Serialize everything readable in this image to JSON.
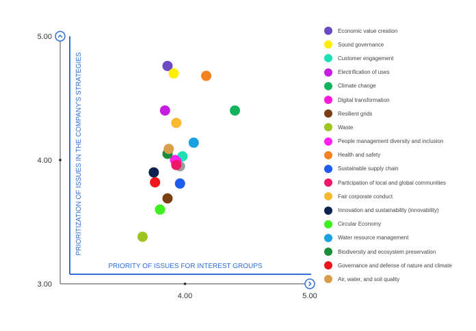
{
  "chart_data": {
    "type": "scatter",
    "xlabel": "PRIORITY OF ISSUES FOR INTEREST GROUPS",
    "ylabel": "PRIORITIZATION OF ISSUES IN THE COMPANY'S STRATEGIES",
    "xlim": [
      3.0,
      5.0
    ],
    "ylim": [
      3.0,
      5.0
    ],
    "x_ticks": [
      "4.00",
      "5.00"
    ],
    "y_ticks": [
      "3.00",
      "4.00",
      "5.00"
    ],
    "origin_label": "3.00",
    "legend_position": "right",
    "series": [
      {
        "name": "Economic value creation",
        "color": "#6a4bc4",
        "x": 3.86,
        "y": 4.76
      },
      {
        "name": "Sound governance",
        "color": "#ffee00",
        "x": 3.91,
        "y": 4.7
      },
      {
        "name": "Customer engagement",
        "color": "#1de0b4",
        "x": 3.98,
        "y": 4.03
      },
      {
        "name": "Electrification of uses",
        "color": "#c51ee0",
        "x": 3.84,
        "y": 4.4
      },
      {
        "name": "Climate change",
        "color": "#14b25c",
        "x": 4.4,
        "y": 4.4
      },
      {
        "name": "Digital transformation",
        "color": "#f91bd9",
        "x": 3.93,
        "y": 3.99
      },
      {
        "name": "Resilient grids",
        "color": "#7b3d12",
        "x": 3.86,
        "y": 3.69
      },
      {
        "name": "Waste",
        "color": "#9dc51f",
        "x": 3.66,
        "y": 3.38
      },
      {
        "name": "People management diversity and inclusion",
        "color": "#ff21f0",
        "x": 3.92,
        "y": 4.0
      },
      {
        "name": "Health and safety",
        "color": "#f58220",
        "x": 4.17,
        "y": 4.68
      },
      {
        "name": "Sustainable supply chain",
        "color": "#1d5cf0",
        "x": 3.96,
        "y": 3.81
      },
      {
        "name": "Participation of local and global communities",
        "color": "#ee1767",
        "x": 3.93,
        "y": 3.96
      },
      {
        "name": "Fair corporate conduct",
        "color": "#fbb933",
        "x": 3.93,
        "y": 4.3
      },
      {
        "name": "Innovation and sustainability (innovability)",
        "color": "#0e2250",
        "x": 3.75,
        "y": 3.9
      },
      {
        "name": "Circular Economy",
        "color": "#3ef01e",
        "x": 3.8,
        "y": 3.6
      },
      {
        "name": "Water resource management",
        "color": "#1aa1e0",
        "x": 4.07,
        "y": 4.14
      },
      {
        "name": "Biodiversity and ecosystem preservation",
        "color": "#1a8c3a",
        "x": 3.86,
        "y": 4.05
      },
      {
        "name": "Governance and defense of nature and climate",
        "color": "#f0151b",
        "x": 3.76,
        "y": 3.82
      },
      {
        "name": "Air, water, and soil quality",
        "color": "#d89e4c",
        "x": 3.87,
        "y": 4.09
      }
    ],
    "extra_points": [
      {
        "color": "#9b9b9b",
        "x": 3.96,
        "y": 3.95
      }
    ]
  }
}
